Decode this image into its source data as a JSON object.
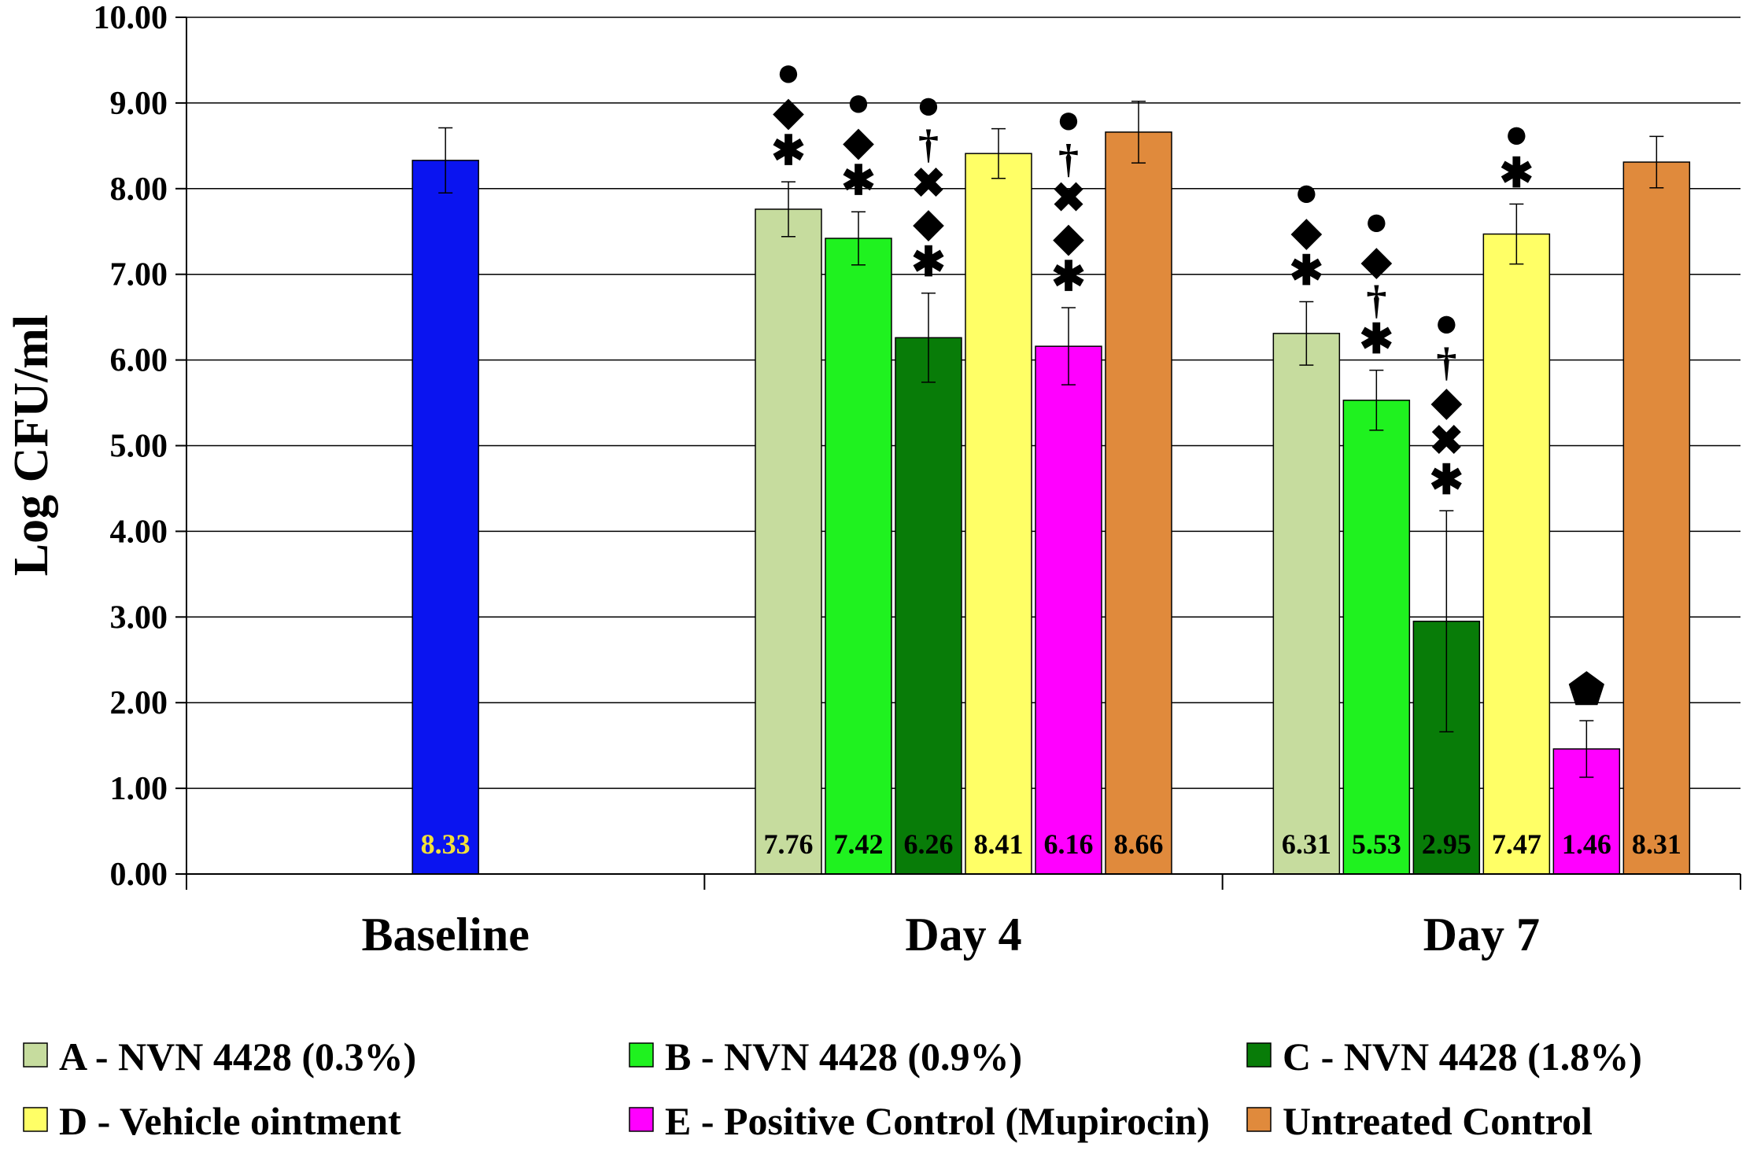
{
  "chart_data": {
    "type": "bar",
    "title": "",
    "xlabel": "",
    "ylabel": "Log CFU/ml",
    "ylim": [
      0,
      10
    ],
    "yticks": [
      "0.00",
      "1.00",
      "2.00",
      "3.00",
      "4.00",
      "5.00",
      "6.00",
      "7.00",
      "8.00",
      "9.00",
      "10.00"
    ],
    "grid": true,
    "legend_position": "bottom",
    "series": [
      {
        "name": "A - NVN 4428 (0.3%)",
        "color": "#c6dc9e"
      },
      {
        "name": "B - NVN 4428 (0.9%)",
        "color": "#1ff21f"
      },
      {
        "name": "C - NVN 4428 (1.8%)",
        "color": "#087c08"
      },
      {
        "name": "D - Vehicle ointment",
        "color": "#ffff66"
      },
      {
        "name": "E - Positive Control (Mupirocin)",
        "color": "#ff00ff"
      },
      {
        "name": "Untreated Control",
        "color": "#e08a3c"
      }
    ],
    "categories": [
      {
        "label": "Baseline",
        "bars": [
          {
            "series": "Baseline",
            "color": "#0a14f0",
            "value": 8.33,
            "error": 0.38,
            "label": "8.33",
            "label_color": "#f2e03a",
            "markers": []
          }
        ]
      },
      {
        "label": "Day 4",
        "bars": [
          {
            "series": "A - NVN 4428 (0.3%)",
            "color": "#c6dc9e",
            "value": 7.76,
            "error": 0.32,
            "label": "7.76",
            "label_color": "#000000",
            "markers": [
              "✱",
              "◆",
              "●"
            ]
          },
          {
            "series": "B - NVN 4428 (0.9%)",
            "color": "#1ff21f",
            "value": 7.42,
            "error": 0.31,
            "label": "7.42",
            "label_color": "#000000",
            "markers": [
              "✱",
              "◆",
              "●"
            ]
          },
          {
            "series": "C - NVN 4428 (1.8%)",
            "color": "#087c08",
            "value": 6.26,
            "error": 0.52,
            "label": "6.26",
            "label_color": "#000000",
            "markers": [
              "✱",
              "◆",
              "✖",
              "†",
              "●"
            ]
          },
          {
            "series": "D - Vehicle ointment",
            "color": "#ffff66",
            "value": 8.41,
            "error": 0.29,
            "label": "8.41",
            "label_color": "#000000",
            "markers": []
          },
          {
            "series": "E - Positive Control (Mupirocin)",
            "color": "#ff00ff",
            "value": 6.16,
            "error": 0.45,
            "label": "6.16",
            "label_color": "#000000",
            "markers": [
              "✱",
              "◆",
              "✖",
              "†",
              "●"
            ]
          },
          {
            "series": "Untreated Control",
            "color": "#e08a3c",
            "value": 8.66,
            "error": 0.36,
            "label": "8.66",
            "label_color": "#000000",
            "markers": []
          }
        ]
      },
      {
        "label": "Day 7",
        "bars": [
          {
            "series": "A - NVN 4428 (0.3%)",
            "color": "#c6dc9e",
            "value": 6.31,
            "error": 0.37,
            "label": "6.31",
            "label_color": "#000000",
            "markers": [
              "✱",
              "◆",
              "●"
            ]
          },
          {
            "series": "B - NVN 4428 (0.9%)",
            "color": "#1ff21f",
            "value": 5.53,
            "error": 0.35,
            "label": "5.53",
            "label_color": "#000000",
            "markers": [
              "✱",
              "†",
              "◆",
              "●"
            ]
          },
          {
            "series": "C - NVN 4428 (1.8%)",
            "color": "#087c08",
            "value": 2.95,
            "error": 1.29,
            "label": "2.95",
            "label_color": "#000000",
            "markers": [
              "✱",
              "✖",
              "◆",
              "†",
              "●"
            ]
          },
          {
            "series": "D - Vehicle ointment",
            "color": "#ffff66",
            "value": 7.47,
            "error": 0.35,
            "label": "7.47",
            "label_color": "#000000",
            "markers": [
              "✱",
              "●"
            ]
          },
          {
            "series": "E - Positive Control (Mupirocin)",
            "color": "#ff00ff",
            "value": 1.46,
            "error": 0.33,
            "label": "1.46",
            "label_color": "#000000",
            "markers": [
              "⬟"
            ]
          },
          {
            "series": "Untreated Control",
            "color": "#e08a3c",
            "value": 8.31,
            "error": 0.3,
            "label": "8.31",
            "label_color": "#000000",
            "markers": []
          }
        ]
      }
    ]
  }
}
